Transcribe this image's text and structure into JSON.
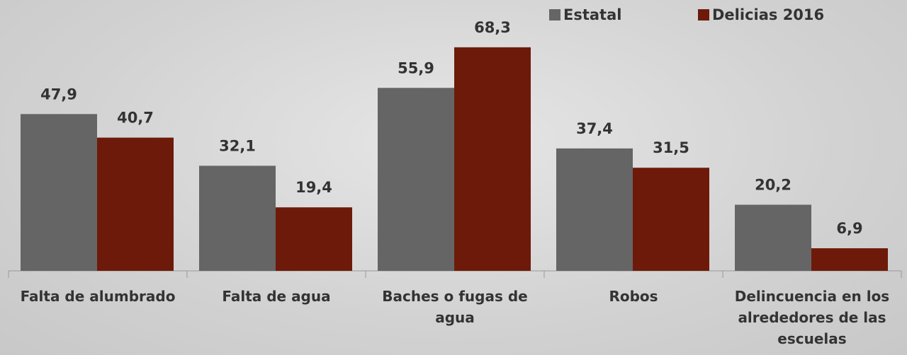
{
  "chart_data": {
    "type": "bar",
    "categories": [
      "Falta de alumbrado",
      "Falta de agua",
      "Baches o fugas de agua",
      "Robos",
      "Delincuencia en los alrededores de las escuelas"
    ],
    "series": [
      {
        "name": "Estatal",
        "color": "#656565",
        "values": [
          47.9,
          32.1,
          55.9,
          37.4,
          20.2
        ],
        "value_labels": [
          "47,9",
          "32,1",
          "55,9",
          "37,4",
          "20,2"
        ]
      },
      {
        "name": "Delicias 2016",
        "color": "#6e1a0a",
        "values": [
          40.7,
          19.4,
          68.3,
          31.5,
          6.9
        ],
        "value_labels": [
          "40,7",
          "19,4",
          "68,3",
          "31,5",
          "6,9"
        ]
      }
    ],
    "ylim": [
      0,
      70
    ]
  }
}
